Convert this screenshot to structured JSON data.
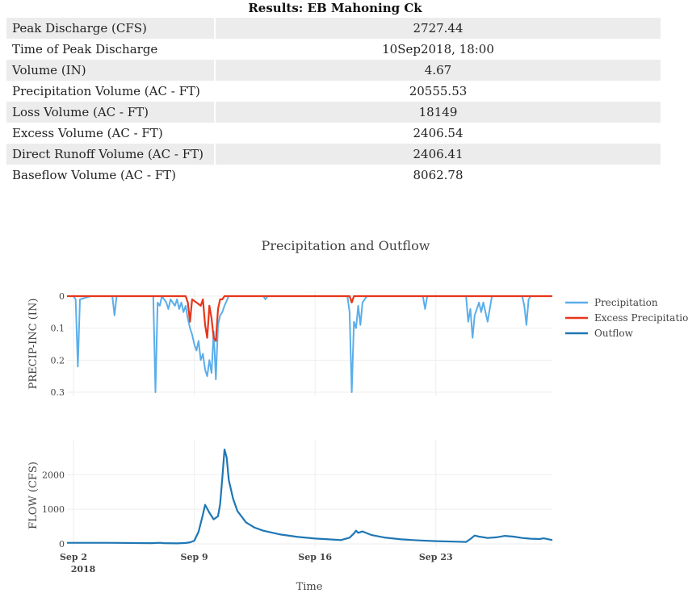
{
  "results": {
    "title": "Results: EB Mahoning Ck",
    "rows": [
      {
        "label": "Peak Discharge (CFS)",
        "value": "2727.44"
      },
      {
        "label": "Time of Peak Discharge",
        "value": "10Sep2018, 18:00"
      },
      {
        "label": "Volume (IN)",
        "value": "4.67"
      },
      {
        "label": "Precipitation Volume (AC - FT)",
        "value": "20555.53"
      },
      {
        "label": "Loss Volume (AC - FT)",
        "value": "18149"
      },
      {
        "label": "Excess Volume (AC - FT)",
        "value": "2406.54"
      },
      {
        "label": "Direct Runoff Volume (AC - FT)",
        "value": "2406.41"
      },
      {
        "label": "Baseflow Volume (AC - FT)",
        "value": "8062.78"
      }
    ]
  },
  "chart_data": {
    "type": "line",
    "title": "Precipitation and Outflow",
    "xlabel": "Time",
    "x_ticks": [
      "Sep 2",
      "Sep 9",
      "Sep 16",
      "Sep 23"
    ],
    "x_tick_year": "2018",
    "xlim": [
      "2018-09-01T15:00",
      "2018-09-29T18:00"
    ],
    "legend": {
      "placement": "top-right",
      "entries": [
        "Precipitation",
        "Excess Precipitation",
        "Outflow"
      ]
    },
    "colors": {
      "Precipitation": "#5aaeea",
      "Excess Precipitation": "#e8361b",
      "Outflow": "#1f77b4"
    },
    "top_panel": {
      "ylabel": "PRECIP-INC (IN)",
      "y_reversed": true,
      "ylim": [
        0,
        0.3
      ],
      "y_ticks": [
        "0",
        "0.1",
        "0.2",
        "0.3"
      ],
      "series": [
        {
          "name": "Precipitation",
          "points": [
            [
              "2018-09-02T00:00",
              0
            ],
            [
              "2018-09-02T03:00",
              0.01
            ],
            [
              "2018-09-02T06:00",
              0.22
            ],
            [
              "2018-09-02T09:00",
              0.01
            ],
            [
              "2018-09-03T00:00",
              0
            ],
            [
              "2018-09-04T06:00",
              0
            ],
            [
              "2018-09-04T09:00",
              0.06
            ],
            [
              "2018-09-04T12:00",
              0
            ],
            [
              "2018-09-06T15:00",
              0
            ],
            [
              "2018-09-06T18:00",
              0.3
            ],
            [
              "2018-09-06T21:00",
              0.02
            ],
            [
              "2018-09-07T00:00",
              0.03
            ],
            [
              "2018-09-07T03:00",
              0
            ],
            [
              "2018-09-07T09:00",
              0.02
            ],
            [
              "2018-09-07T12:00",
              0.04
            ],
            [
              "2018-09-07T15:00",
              0.01
            ],
            [
              "2018-09-07T21:00",
              0.03
            ],
            [
              "2018-09-08T00:00",
              0.01
            ],
            [
              "2018-09-08T03:00",
              0.04
            ],
            [
              "2018-09-08T06:00",
              0.02
            ],
            [
              "2018-09-08T09:00",
              0.05
            ],
            [
              "2018-09-08T12:00",
              0.03
            ],
            [
              "2018-09-08T15:00",
              0.07
            ],
            [
              "2018-09-08T18:00",
              0.1
            ],
            [
              "2018-09-08T21:00",
              0.12
            ],
            [
              "2018-09-09T00:00",
              0.15
            ],
            [
              "2018-09-09T03:00",
              0.17
            ],
            [
              "2018-09-09T06:00",
              0.14
            ],
            [
              "2018-09-09T09:00",
              0.2
            ],
            [
              "2018-09-09T12:00",
              0.18
            ],
            [
              "2018-09-09T15:00",
              0.23
            ],
            [
              "2018-09-09T18:00",
              0.25
            ],
            [
              "2018-09-09T21:00",
              0.2
            ],
            [
              "2018-09-10T00:00",
              0.24
            ],
            [
              "2018-09-10T03:00",
              0.11
            ],
            [
              "2018-09-10T06:00",
              0.26
            ],
            [
              "2018-09-10T09:00",
              0.09
            ],
            [
              "2018-09-10T12:00",
              0.06
            ],
            [
              "2018-09-10T15:00",
              0.05
            ],
            [
              "2018-09-10T18:00",
              0.03
            ],
            [
              "2018-09-11T00:00",
              0
            ],
            [
              "2018-09-13T00:00",
              0
            ],
            [
              "2018-09-13T03:00",
              0.01
            ],
            [
              "2018-09-13T06:00",
              0
            ],
            [
              "2018-09-17T21:00",
              0
            ],
            [
              "2018-09-18T00:00",
              0.05
            ],
            [
              "2018-09-18T03:00",
              0.3
            ],
            [
              "2018-09-18T06:00",
              0.08
            ],
            [
              "2018-09-18T09:00",
              0.1
            ],
            [
              "2018-09-18T12:00",
              0.03
            ],
            [
              "2018-09-18T15:00",
              0.09
            ],
            [
              "2018-09-18T18:00",
              0.02
            ],
            [
              "2018-09-19T00:00",
              0
            ],
            [
              "2018-09-22T06:00",
              0
            ],
            [
              "2018-09-22T09:00",
              0.04
            ],
            [
              "2018-09-22T12:00",
              0
            ],
            [
              "2018-09-24T18:00",
              0
            ],
            [
              "2018-09-24T21:00",
              0.08
            ],
            [
              "2018-09-25T00:00",
              0.04
            ],
            [
              "2018-09-25T03:00",
              0.13
            ],
            [
              "2018-09-25T06:00",
              0.06
            ],
            [
              "2018-09-25T09:00",
              0.04
            ],
            [
              "2018-09-25T12:00",
              0.02
            ],
            [
              "2018-09-25T15:00",
              0.05
            ],
            [
              "2018-09-25T18:00",
              0.02
            ],
            [
              "2018-09-26T00:00",
              0.08
            ],
            [
              "2018-09-26T03:00",
              0.04
            ],
            [
              "2018-09-26T06:00",
              0
            ],
            [
              "2018-09-28T00:00",
              0
            ],
            [
              "2018-09-28T03:00",
              0.03
            ],
            [
              "2018-09-28T06:00",
              0.09
            ],
            [
              "2018-09-28T09:00",
              0.01
            ],
            [
              "2018-09-28T12:00",
              0
            ],
            [
              "2018-09-29T18:00",
              0
            ]
          ]
        },
        {
          "name": "Excess Precipitation",
          "points": [
            [
              "2018-09-01T15:00",
              0
            ],
            [
              "2018-09-08T12:00",
              0
            ],
            [
              "2018-09-08T15:00",
              0.02
            ],
            [
              "2018-09-08T18:00",
              0.08
            ],
            [
              "2018-09-08T21:00",
              0.01
            ],
            [
              "2018-09-09T03:00",
              0.02
            ],
            [
              "2018-09-09T09:00",
              0.03
            ],
            [
              "2018-09-09T12:00",
              0.01
            ],
            [
              "2018-09-09T15:00",
              0.09
            ],
            [
              "2018-09-09T18:00",
              0.13
            ],
            [
              "2018-09-09T21:00",
              0.03
            ],
            [
              "2018-09-10T00:00",
              0.07
            ],
            [
              "2018-09-10T03:00",
              0.13
            ],
            [
              "2018-09-10T06:00",
              0.14
            ],
            [
              "2018-09-10T09:00",
              0.04
            ],
            [
              "2018-09-10T12:00",
              0.01
            ],
            [
              "2018-09-10T15:00",
              0.01
            ],
            [
              "2018-09-10T18:00",
              0
            ],
            [
              "2018-09-18T00:00",
              0
            ],
            [
              "2018-09-18T03:00",
              0.02
            ],
            [
              "2018-09-18T06:00",
              0
            ],
            [
              "2018-09-29T18:00",
              0
            ]
          ]
        }
      ]
    },
    "bottom_panel": {
      "ylabel": "FLOW (CFS)",
      "ylim": [
        0,
        2800
      ],
      "y_ticks": [
        "0",
        "1000",
        "2000"
      ],
      "series": [
        {
          "name": "Outflow",
          "points": [
            [
              "2018-09-01T15:00",
              30
            ],
            [
              "2018-09-04T00:00",
              30
            ],
            [
              "2018-09-06T12:00",
              20
            ],
            [
              "2018-09-07T00:00",
              30
            ],
            [
              "2018-09-07T06:00",
              20
            ],
            [
              "2018-09-08T00:00",
              15
            ],
            [
              "2018-09-08T12:00",
              25
            ],
            [
              "2018-09-08T18:00",
              45
            ],
            [
              "2018-09-09T00:00",
              90
            ],
            [
              "2018-09-09T06:00",
              350
            ],
            [
              "2018-09-09T12:00",
              850
            ],
            [
              "2018-09-09T15:00",
              1130
            ],
            [
              "2018-09-09T21:00",
              900
            ],
            [
              "2018-09-10T03:00",
              710
            ],
            [
              "2018-09-10T09:00",
              800
            ],
            [
              "2018-09-10T12:00",
              1150
            ],
            [
              "2018-09-10T15:00",
              1900
            ],
            [
              "2018-09-10T18:00",
              2727
            ],
            [
              "2018-09-10T21:00",
              2500
            ],
            [
              "2018-09-11T00:00",
              1850
            ],
            [
              "2018-09-11T06:00",
              1300
            ],
            [
              "2018-09-11T12:00",
              950
            ],
            [
              "2018-09-12T00:00",
              620
            ],
            [
              "2018-09-12T12:00",
              470
            ],
            [
              "2018-09-13T00:00",
              380
            ],
            [
              "2018-09-14T00:00",
              270
            ],
            [
              "2018-09-15T00:00",
              200
            ],
            [
              "2018-09-16T00:00",
              155
            ],
            [
              "2018-09-17T00:00",
              125
            ],
            [
              "2018-09-17T12:00",
              110
            ],
            [
              "2018-09-18T00:00",
              180
            ],
            [
              "2018-09-18T06:00",
              300
            ],
            [
              "2018-09-18T09:00",
              380
            ],
            [
              "2018-09-18T12:00",
              320
            ],
            [
              "2018-09-18T18:00",
              360
            ],
            [
              "2018-09-19T06:00",
              260
            ],
            [
              "2018-09-20T00:00",
              185
            ],
            [
              "2018-09-21T00:00",
              130
            ],
            [
              "2018-09-22T00:00",
              100
            ],
            [
              "2018-09-23T00:00",
              80
            ],
            [
              "2018-09-24T00:00",
              65
            ],
            [
              "2018-09-24T18:00",
              55
            ],
            [
              "2018-09-25T00:00",
              140
            ],
            [
              "2018-09-25T06:00",
              240
            ],
            [
              "2018-09-25T12:00",
              210
            ],
            [
              "2018-09-26T00:00",
              170
            ],
            [
              "2018-09-26T12:00",
              190
            ],
            [
              "2018-09-27T00:00",
              230
            ],
            [
              "2018-09-27T12:00",
              210
            ],
            [
              "2018-09-28T00:00",
              170
            ],
            [
              "2018-09-28T12:00",
              150
            ],
            [
              "2018-09-29T00:00",
              140
            ],
            [
              "2018-09-29T06:00",
              160
            ],
            [
              "2018-09-29T18:00",
              110
            ]
          ]
        }
      ]
    }
  }
}
